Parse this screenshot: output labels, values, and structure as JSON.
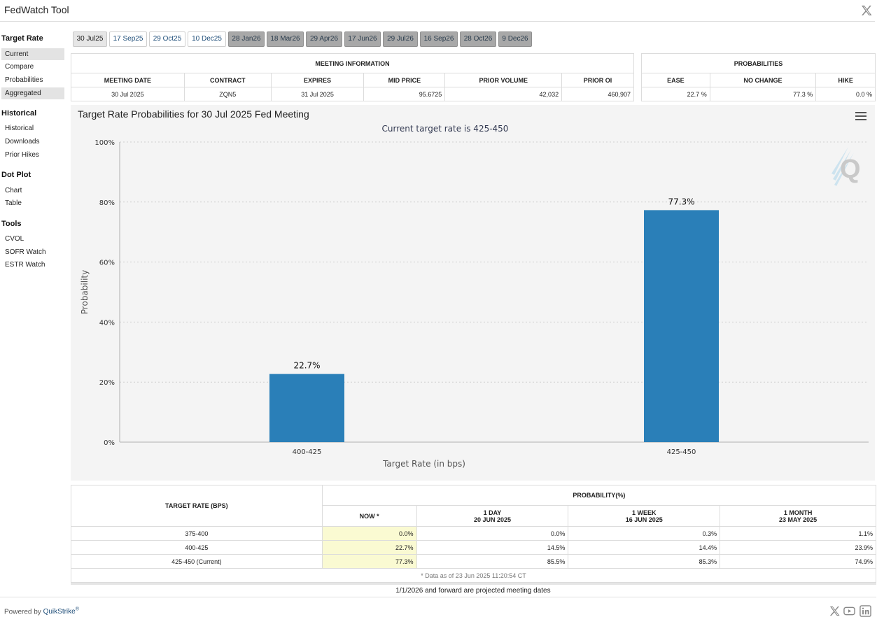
{
  "app": {
    "title": "FedWatch Tool"
  },
  "sidebar": {
    "sections": [
      {
        "heading": "Target Rate",
        "items": [
          "Current",
          "Compare",
          "Probabilities",
          "Aggregated"
        ]
      },
      {
        "heading": "Historical",
        "items": [
          "Historical",
          "Downloads",
          "Prior Hikes"
        ]
      },
      {
        "heading": "Dot Plot",
        "items": [
          "Chart",
          "Table"
        ]
      },
      {
        "heading": "Tools",
        "items": [
          "CVOL",
          "SOFR Watch",
          "ESTR Watch"
        ]
      }
    ]
  },
  "tabs": [
    "30 Jul25",
    "17 Sep25",
    "29 Oct25",
    "10 Dec25",
    "28 Jan26",
    "18 Mar26",
    "29 Apr26",
    "17 Jun26",
    "29 Jul26",
    "16 Sep26",
    "28 Oct26",
    "9 Dec26"
  ],
  "meeting_info": {
    "title": "MEETING INFORMATION",
    "headers": [
      "MEETING DATE",
      "CONTRACT",
      "EXPIRES",
      "MID PRICE",
      "PRIOR VOLUME",
      "PRIOR OI"
    ],
    "row": [
      "30 Jul 2025",
      "ZQN5",
      "31 Jul 2025",
      "95.6725",
      "42,032",
      "460,907"
    ]
  },
  "probabilities_box": {
    "title": "PROBABILITIES",
    "headers": [
      "EASE",
      "NO CHANGE",
      "HIKE"
    ],
    "row": [
      "22.7 %",
      "77.3 %",
      "0.0 %"
    ]
  },
  "chart": {
    "title": "Target Rate Probabilities for 30 Jul 2025 Fed Meeting",
    "subtitle": "Current target rate is 425-450",
    "colors": {
      "bar": "#2a7fb8",
      "grid": "#cfcfcf",
      "axis": "#b0b0b0"
    }
  },
  "chart_data": {
    "type": "bar",
    "title": "Target Rate Probabilities for 30 Jul 2025 Fed Meeting",
    "subtitle": "Current target rate is 425-450",
    "categories": [
      "400-425",
      "425-450"
    ],
    "values": [
      22.7,
      77.3
    ],
    "value_labels": [
      "22.7%",
      "77.3%"
    ],
    "xlabel": "Target Rate (in bps)",
    "ylabel": "Probability",
    "ylim": [
      0,
      100
    ],
    "yticks": [
      0,
      20,
      40,
      60,
      80,
      100
    ],
    "ytick_labels": [
      "0%",
      "20%",
      "40%",
      "60%",
      "80%",
      "100%"
    ],
    "grid": true
  },
  "prob_table": {
    "first_header": "TARGET RATE (BPS)",
    "group_header": "PROBABILITY(%)",
    "columns": [
      {
        "line1": "NOW *",
        "line2": ""
      },
      {
        "line1": "1 DAY",
        "line2": "20 JUN 2025"
      },
      {
        "line1": "1 WEEK",
        "line2": "16 JUN 2025"
      },
      {
        "line1": "1 MONTH",
        "line2": "23 MAY 2025"
      }
    ],
    "rows": [
      {
        "rate": "375-400",
        "values": [
          "0.0%",
          "0.0%",
          "0.3%",
          "1.1%"
        ]
      },
      {
        "rate": "400-425",
        "values": [
          "22.7%",
          "14.5%",
          "14.4%",
          "23.9%"
        ]
      },
      {
        "rate": "425-450 (Current)",
        "values": [
          "77.3%",
          "85.5%",
          "85.3%",
          "74.9%"
        ]
      }
    ],
    "note": "* Data as of 23 Jun 2025 11:20:54 CT"
  },
  "footer": {
    "projected": "1/1/2026 and forward are projected meeting dates",
    "powered_by": "Powered by ",
    "brand": "QuikStrike",
    "brand_mark": "®"
  },
  "icons": [
    "x-icon",
    "youtube-icon",
    "linkedin-icon",
    "menu-icon"
  ]
}
